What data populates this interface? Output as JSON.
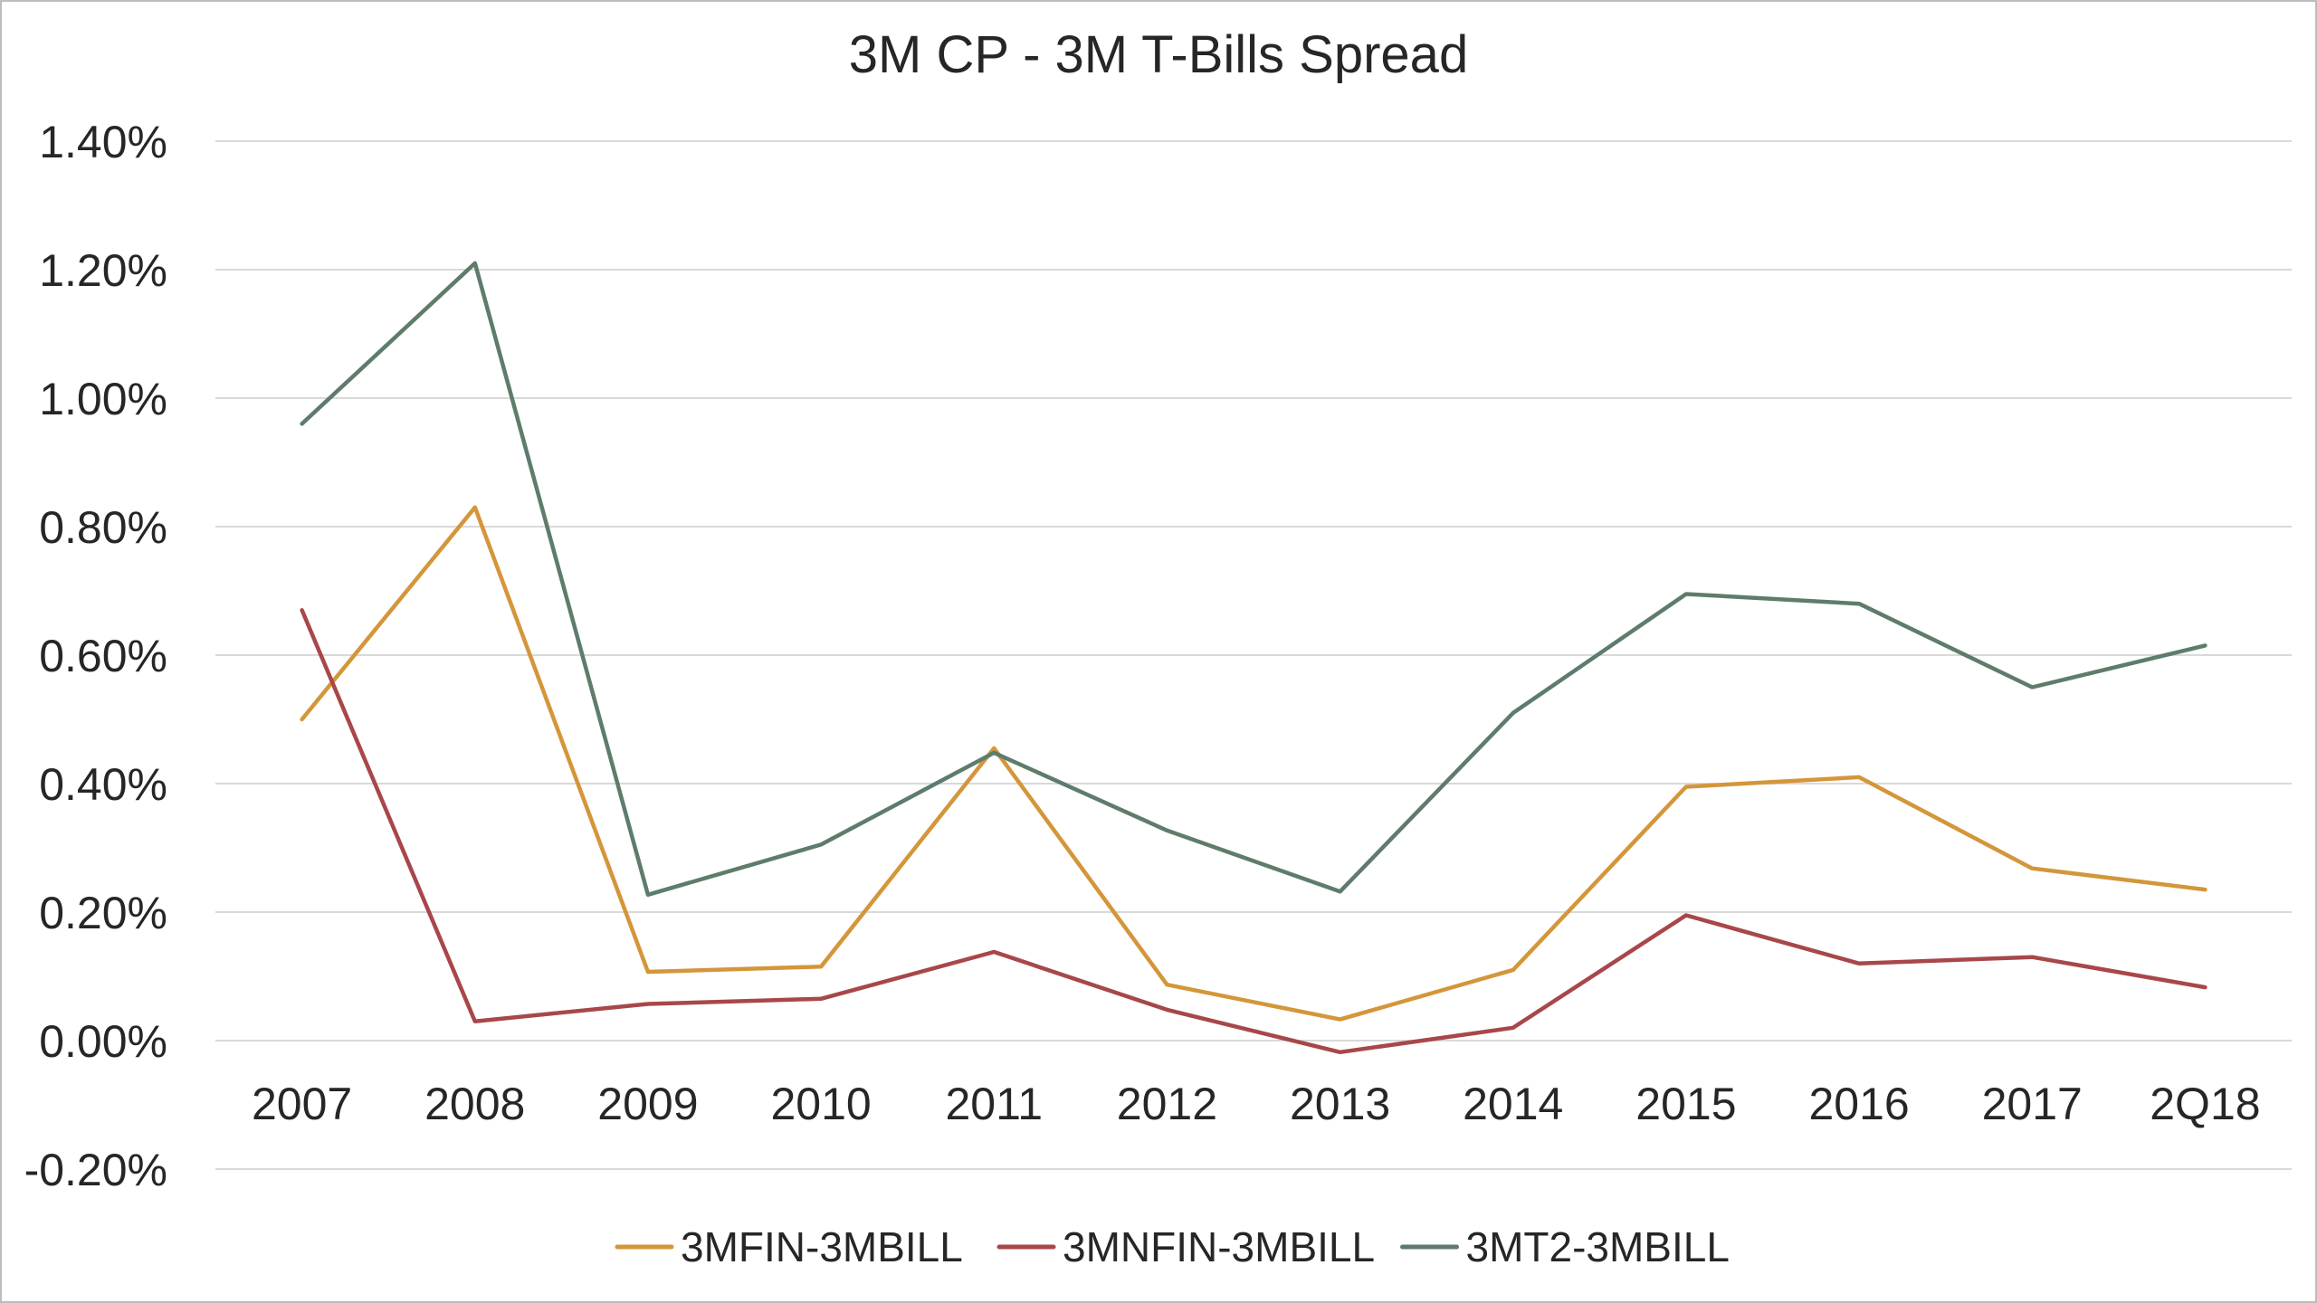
{
  "chart_data": {
    "type": "line",
    "title": "3M CP - 3M T-Bills Spread",
    "xlabel": "",
    "ylabel": "",
    "categories": [
      "2007",
      "2008",
      "2009",
      "2010",
      "2011",
      "2012",
      "2013",
      "2014",
      "2015",
      "2016",
      "2017",
      "2Q18"
    ],
    "y_ticks": [
      "1.40%",
      "1.20%",
      "1.00%",
      "0.80%",
      "0.60%",
      "0.40%",
      "0.20%",
      "0.00%",
      "-0.20%"
    ],
    "ylim": [
      -0.2,
      1.4
    ],
    "grid": true,
    "legend_position": "bottom",
    "series": [
      {
        "name": "3MFIN-3MBILL",
        "color": "#D4963A",
        "values": [
          0.5,
          0.83,
          0.107,
          0.115,
          0.455,
          0.087,
          0.033,
          0.11,
          0.395,
          0.41,
          0.268,
          0.235
        ]
      },
      {
        "name": "3MNFIN-3MBILL",
        "color": "#A8474A",
        "values": [
          0.67,
          0.03,
          0.057,
          0.065,
          0.138,
          0.048,
          -0.018,
          0.02,
          0.195,
          0.12,
          0.13,
          0.083
        ]
      },
      {
        "name": "3MT2-3MBILL",
        "color": "#5E7C6B",
        "values": [
          0.96,
          1.21,
          0.227,
          0.305,
          0.448,
          0.327,
          0.232,
          0.51,
          0.695,
          0.68,
          0.55,
          0.615
        ]
      }
    ]
  }
}
